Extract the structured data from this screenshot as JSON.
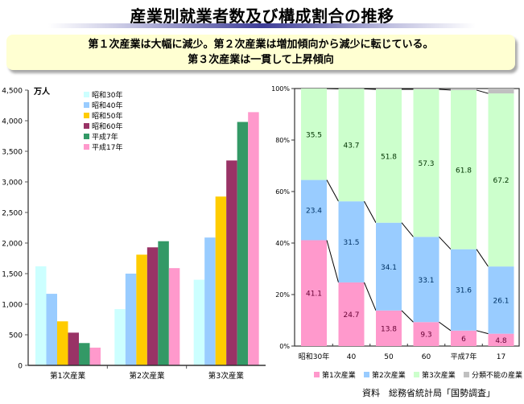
{
  "title": "産業別就業者数及び構成割合の推移",
  "banner": {
    "line1": "第１次産業は大幅に減少。第２次産業は増加傾向から減少に転じている。",
    "line2": "第３次産業は一貫して上昇傾向"
  },
  "source": "資料　総務省統計局「国勢調査」",
  "chart_data": [
    {
      "type": "bar",
      "title": "",
      "ylabel": "万人",
      "xlabel": "",
      "ylim": [
        0,
        4500
      ],
      "yticks": [
        0,
        500,
        1000,
        1500,
        2000,
        2500,
        3000,
        3500,
        4000,
        4500
      ],
      "ytick_labels": [
        "0",
        "500",
        "1,000",
        "1,500",
        "2,000",
        "2,500",
        "3,000",
        "3,500",
        "4,000",
        "4,500"
      ],
      "categories": [
        "第1次産業",
        "第2次産業",
        "第3次産業"
      ],
      "legend_position": "top-left",
      "grid": false,
      "series": [
        {
          "name": "昭和30年",
          "color": "#ccffff",
          "values": [
            1620,
            920,
            1400
          ]
        },
        {
          "name": "昭和40年",
          "color": "#99ccff",
          "values": [
            1170,
            1500,
            2090
          ]
        },
        {
          "name": "昭和50年",
          "color": "#ffcc00",
          "values": [
            720,
            1810,
            2760
          ]
        },
        {
          "name": "昭和60年",
          "color": "#993366",
          "values": [
            535,
            1930,
            3350
          ]
        },
        {
          "name": "平成7年",
          "color": "#339966",
          "values": [
            365,
            2030,
            3980
          ]
        },
        {
          "name": "平成17年",
          "color": "#ff99cc",
          "values": [
            290,
            1590,
            4140
          ]
        }
      ]
    },
    {
      "type": "bar",
      "stacked": true,
      "percent": true,
      "title": "",
      "xlabel": "",
      "ylabel": "",
      "ylim": [
        0,
        100
      ],
      "yticks": [
        0,
        20,
        40,
        60,
        80,
        100
      ],
      "ytick_labels": [
        "0%",
        "20%",
        "40%",
        "60%",
        "80%",
        "100%"
      ],
      "categories": [
        "昭和30年",
        "40",
        "50",
        "60",
        "平成7年",
        "17"
      ],
      "legend_position": "bottom",
      "grid": false,
      "series": [
        {
          "name": "第1次産業",
          "color": "#ff99cc",
          "values": [
            41.1,
            24.7,
            13.8,
            9.3,
            6,
            4.8
          ],
          "labels": [
            "41.1",
            "24.7",
            "13.8",
            "9.3",
            "6",
            "4.8"
          ],
          "label_color": "#660033"
        },
        {
          "name": "第2次産業",
          "color": "#99ccff",
          "values": [
            23.4,
            31.5,
            34.1,
            33.1,
            31.6,
            26.1
          ],
          "labels": [
            "23.4",
            "31.5",
            "34.1",
            "33.1",
            "31.6",
            "26.1"
          ],
          "label_color": "#003366"
        },
        {
          "name": "第3次産業",
          "color": "#ccffcc",
          "values": [
            35.5,
            43.7,
            51.8,
            57.3,
            61.8,
            67.2
          ],
          "labels": [
            "35.5",
            "43.7",
            "51.8",
            "57.3",
            "61.8",
            "67.2"
          ],
          "label_color": "#003300"
        },
        {
          "name": "分類不能の産業",
          "color": "#c0c0c0",
          "values": [
            0,
            0.1,
            0.3,
            0.3,
            0.6,
            1.9
          ]
        }
      ]
    }
  ]
}
